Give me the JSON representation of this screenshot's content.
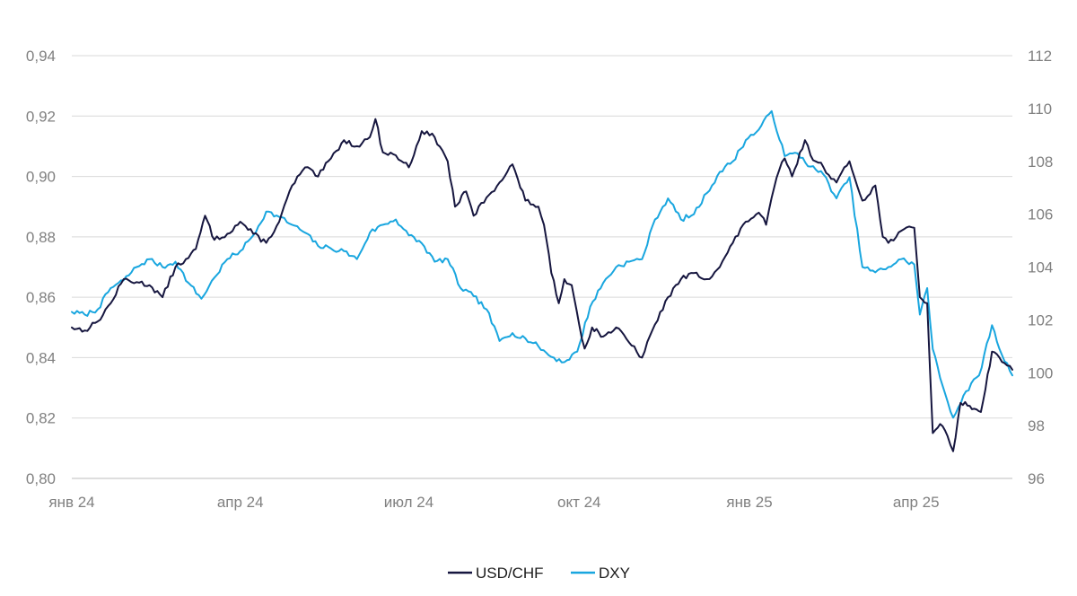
{
  "chart_data": {
    "type": "line",
    "title": "",
    "xlabel": "",
    "ylabel": "",
    "x_tick_labels": [
      "янв 24",
      "апр 24",
      "июл 24",
      "окт 24",
      "янв 25",
      "апр 25"
    ],
    "x_ticks": [
      "2024-01-01",
      "2024-04-01",
      "2024-07-01",
      "2024-10-01",
      "2025-01-01",
      "2025-04-01"
    ],
    "x_range": [
      "2024-01-01",
      "2025-05-23"
    ],
    "y_left": {
      "ylim": [
        0.8,
        0.94
      ],
      "ticks": [
        "0,80",
        "0,82",
        "0,84",
        "0,86",
        "0,88",
        "0,90",
        "0,92",
        "0,94"
      ]
    },
    "y_right": {
      "ylim": [
        96,
        112
      ],
      "ticks": [
        "96",
        "98",
        "100",
        "102",
        "104",
        "106",
        "108",
        "110",
        "112"
      ]
    },
    "grid": true,
    "legend_position": "bottom-center",
    "series": [
      {
        "name": "USD/CHF",
        "axis": "left",
        "color": "#16163f",
        "points": [
          [
            "2024-01-01",
            0.85
          ],
          [
            "2024-01-08",
            0.849
          ],
          [
            "2024-01-15",
            0.852
          ],
          [
            "2024-01-22",
            0.858
          ],
          [
            "2024-01-29",
            0.866
          ],
          [
            "2024-02-05",
            0.865
          ],
          [
            "2024-02-12",
            0.864
          ],
          [
            "2024-02-19",
            0.86
          ],
          [
            "2024-02-26",
            0.87
          ],
          [
            "2024-03-04",
            0.873
          ],
          [
            "2024-03-08",
            0.876
          ],
          [
            "2024-03-13",
            0.887
          ],
          [
            "2024-03-18",
            0.879
          ],
          [
            "2024-03-25",
            0.881
          ],
          [
            "2024-04-01",
            0.885
          ],
          [
            "2024-04-08",
            0.881
          ],
          [
            "2024-04-15",
            0.878
          ],
          [
            "2024-04-22",
            0.885
          ],
          [
            "2024-04-29",
            0.897
          ],
          [
            "2024-05-06",
            0.903
          ],
          [
            "2024-05-13",
            0.9
          ],
          [
            "2024-05-20",
            0.906
          ],
          [
            "2024-05-27",
            0.912
          ],
          [
            "2024-06-03",
            0.91
          ],
          [
            "2024-06-10",
            0.913
          ],
          [
            "2024-06-13",
            0.919
          ],
          [
            "2024-06-17",
            0.908
          ],
          [
            "2024-06-24",
            0.907
          ],
          [
            "2024-07-01",
            0.903
          ],
          [
            "2024-07-08",
            0.915
          ],
          [
            "2024-07-15",
            0.913
          ],
          [
            "2024-07-22",
            0.905
          ],
          [
            "2024-07-26",
            0.89
          ],
          [
            "2024-08-01",
            0.895
          ],
          [
            "2024-08-05",
            0.887
          ],
          [
            "2024-08-12",
            0.893
          ],
          [
            "2024-08-19",
            0.898
          ],
          [
            "2024-08-26",
            0.904
          ],
          [
            "2024-09-02",
            0.892
          ],
          [
            "2024-09-09",
            0.89
          ],
          [
            "2024-09-12",
            0.884
          ],
          [
            "2024-09-16",
            0.868
          ],
          [
            "2024-09-20",
            0.858
          ],
          [
            "2024-09-23",
            0.866
          ],
          [
            "2024-09-27",
            0.864
          ],
          [
            "2024-10-01",
            0.851
          ],
          [
            "2024-10-04",
            0.843
          ],
          [
            "2024-10-08",
            0.85
          ],
          [
            "2024-10-14",
            0.847
          ],
          [
            "2024-10-21",
            0.85
          ],
          [
            "2024-10-28",
            0.845
          ],
          [
            "2024-11-04",
            0.84
          ],
          [
            "2024-11-11",
            0.851
          ],
          [
            "2024-11-18",
            0.86
          ],
          [
            "2024-11-25",
            0.866
          ],
          [
            "2024-12-02",
            0.868
          ],
          [
            "2024-12-09",
            0.866
          ],
          [
            "2024-12-16",
            0.87
          ],
          [
            "2024-12-23",
            0.878
          ],
          [
            "2024-12-30",
            0.885
          ],
          [
            "2025-01-06",
            0.888
          ],
          [
            "2025-01-10",
            0.884
          ],
          [
            "2025-01-13",
            0.893
          ],
          [
            "2025-01-17",
            0.902
          ],
          [
            "2025-01-20",
            0.906
          ],
          [
            "2025-01-24",
            0.9
          ],
          [
            "2025-01-31",
            0.912
          ],
          [
            "2025-02-03",
            0.907
          ],
          [
            "2025-02-10",
            0.903
          ],
          [
            "2025-02-17",
            0.898
          ],
          [
            "2025-02-24",
            0.905
          ],
          [
            "2025-03-03",
            0.892
          ],
          [
            "2025-03-10",
            0.897
          ],
          [
            "2025-03-14",
            0.88
          ],
          [
            "2025-03-17",
            0.878
          ],
          [
            "2025-03-24",
            0.882
          ],
          [
            "2025-03-31",
            0.883
          ],
          [
            "2025-04-03",
            0.86
          ],
          [
            "2025-04-07",
            0.858
          ],
          [
            "2025-04-10",
            0.815
          ],
          [
            "2025-04-14",
            0.818
          ],
          [
            "2025-04-18",
            0.814
          ],
          [
            "2025-04-21",
            0.809
          ],
          [
            "2025-04-25",
            0.825
          ],
          [
            "2025-04-30",
            0.824
          ],
          [
            "2025-05-06",
            0.822
          ],
          [
            "2025-05-12",
            0.842
          ],
          [
            "2025-05-16",
            0.84
          ],
          [
            "2025-05-23",
            0.836
          ]
        ]
      },
      {
        "name": "DXY",
        "axis": "right",
        "color": "#19a6df",
        "points": [
          [
            "2024-01-01",
            102.3
          ],
          [
            "2024-01-08",
            102.2
          ],
          [
            "2024-01-15",
            102.4
          ],
          [
            "2024-01-22",
            103.2
          ],
          [
            "2024-01-29",
            103.5
          ],
          [
            "2024-02-05",
            104.0
          ],
          [
            "2024-02-12",
            104.3
          ],
          [
            "2024-02-19",
            104.0
          ],
          [
            "2024-02-26",
            104.2
          ],
          [
            "2024-03-04",
            103.4
          ],
          [
            "2024-03-11",
            102.8
          ],
          [
            "2024-03-18",
            103.6
          ],
          [
            "2024-03-25",
            104.3
          ],
          [
            "2024-04-01",
            104.6
          ],
          [
            "2024-04-08",
            105.2
          ],
          [
            "2024-04-15",
            106.1
          ],
          [
            "2024-04-22",
            105.9
          ],
          [
            "2024-04-29",
            105.6
          ],
          [
            "2024-05-06",
            105.3
          ],
          [
            "2024-05-13",
            104.8
          ],
          [
            "2024-05-20",
            104.7
          ],
          [
            "2024-05-27",
            104.6
          ],
          [
            "2024-06-03",
            104.3
          ],
          [
            "2024-06-10",
            105.3
          ],
          [
            "2024-06-17",
            105.6
          ],
          [
            "2024-06-24",
            105.8
          ],
          [
            "2024-07-01",
            105.2
          ],
          [
            "2024-07-08",
            104.9
          ],
          [
            "2024-07-15",
            104.2
          ],
          [
            "2024-07-22",
            104.3
          ],
          [
            "2024-07-29",
            103.2
          ],
          [
            "2024-08-05",
            102.9
          ],
          [
            "2024-08-12",
            102.4
          ],
          [
            "2024-08-19",
            101.2
          ],
          [
            "2024-08-26",
            101.5
          ],
          [
            "2024-09-02",
            101.3
          ],
          [
            "2024-09-09",
            101.0
          ],
          [
            "2024-09-16",
            100.6
          ],
          [
            "2024-09-23",
            100.4
          ],
          [
            "2024-09-30",
            100.8
          ],
          [
            "2024-10-07",
            102.5
          ],
          [
            "2024-10-14",
            103.4
          ],
          [
            "2024-10-21",
            104.0
          ],
          [
            "2024-10-28",
            104.2
          ],
          [
            "2024-11-04",
            104.3
          ],
          [
            "2024-11-11",
            105.8
          ],
          [
            "2024-11-18",
            106.6
          ],
          [
            "2024-11-25",
            105.8
          ],
          [
            "2024-12-02",
            106.0
          ],
          [
            "2024-12-09",
            106.8
          ],
          [
            "2024-12-16",
            107.6
          ],
          [
            "2024-12-23",
            108.0
          ],
          [
            "2024-12-30",
            108.8
          ],
          [
            "2025-01-06",
            109.2
          ],
          [
            "2025-01-13",
            109.9
          ],
          [
            "2025-01-20",
            108.2
          ],
          [
            "2025-01-27",
            108.3
          ],
          [
            "2025-02-03",
            107.8
          ],
          [
            "2025-02-10",
            107.5
          ],
          [
            "2025-02-17",
            106.6
          ],
          [
            "2025-02-24",
            107.4
          ],
          [
            "2025-03-03",
            104.0
          ],
          [
            "2025-03-10",
            103.8
          ],
          [
            "2025-03-17",
            104.0
          ],
          [
            "2025-03-24",
            104.3
          ],
          [
            "2025-03-31",
            104.1
          ],
          [
            "2025-04-03",
            102.2
          ],
          [
            "2025-04-07",
            103.2
          ],
          [
            "2025-04-10",
            100.9
          ],
          [
            "2025-04-14",
            99.8
          ],
          [
            "2025-04-21",
            98.3
          ],
          [
            "2025-04-28",
            99.3
          ],
          [
            "2025-05-05",
            99.9
          ],
          [
            "2025-05-12",
            101.8
          ],
          [
            "2025-05-16",
            100.9
          ],
          [
            "2025-05-23",
            99.9
          ]
        ]
      }
    ]
  }
}
